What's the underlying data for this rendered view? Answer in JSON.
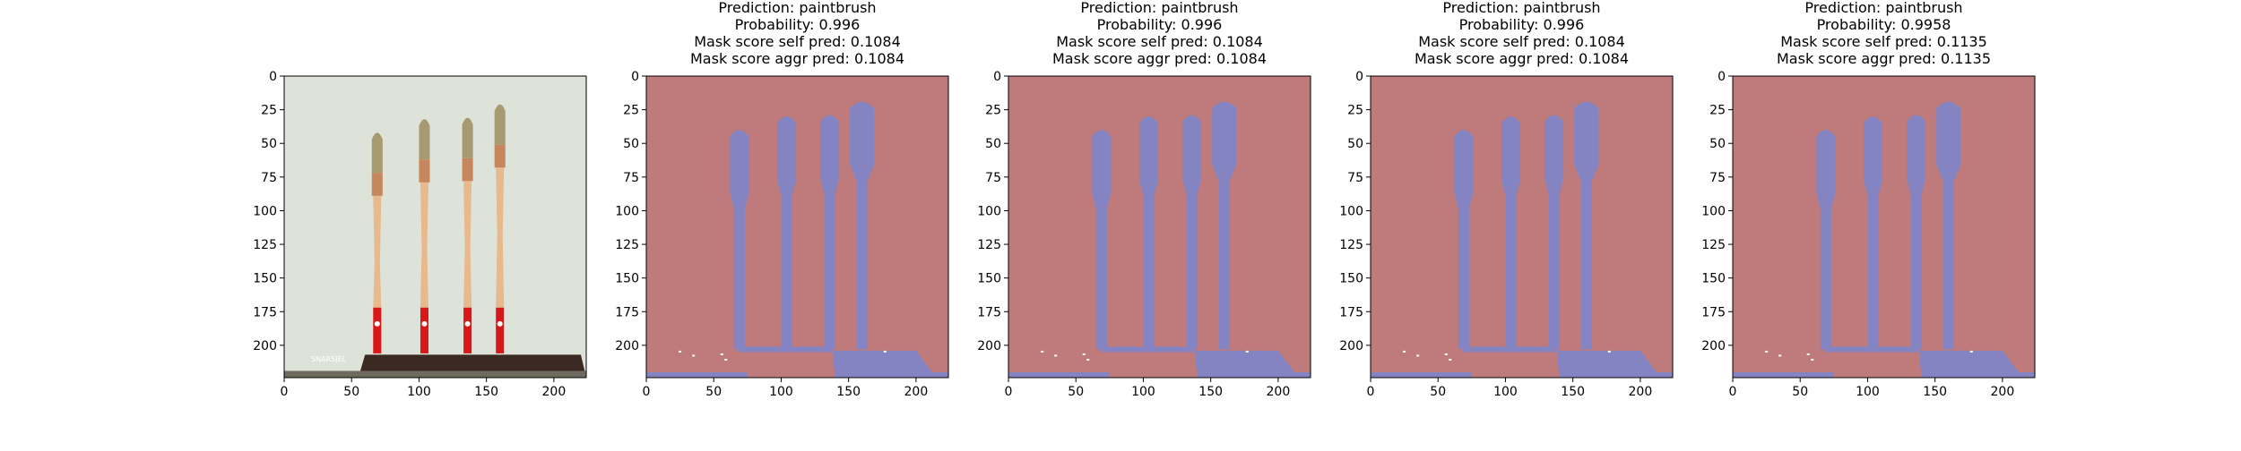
{
  "chart_data": {
    "type": "image-grid",
    "panels": [
      {
        "kind": "photo",
        "titles": [],
        "x_ticks": [
          0,
          50,
          100,
          150,
          200
        ],
        "y_ticks": [
          0,
          25,
          50,
          75,
          100,
          125,
          150,
          175,
          200
        ],
        "xlim": [
          0,
          224
        ],
        "ylim": [
          224,
          0
        ],
        "watermark": "SNARSJEL"
      },
      {
        "kind": "mask",
        "titles": [
          "Prediction: paintbrush",
          "Probability: 0.996",
          "Mask score self pred: 0.1084",
          "Mask score aggr pred: 0.1084"
        ],
        "x_ticks": [
          0,
          50,
          100,
          150,
          200
        ],
        "y_ticks": [
          0,
          25,
          50,
          75,
          100,
          125,
          150,
          175,
          200
        ],
        "xlim": [
          0,
          224
        ],
        "ylim": [
          224,
          0
        ]
      },
      {
        "kind": "mask",
        "titles": [
          "Prediction: paintbrush",
          "Probability: 0.996",
          "Mask score self pred: 0.1084",
          "Mask score aggr pred: 0.1084"
        ],
        "x_ticks": [
          0,
          50,
          100,
          150,
          200
        ],
        "y_ticks": [
          0,
          25,
          50,
          75,
          100,
          125,
          150,
          175,
          200
        ],
        "xlim": [
          0,
          224
        ],
        "ylim": [
          224,
          0
        ]
      },
      {
        "kind": "mask",
        "titles": [
          "Prediction: paintbrush",
          "Probability: 0.996",
          "Mask score self pred: 0.1084",
          "Mask score aggr pred: 0.1084"
        ],
        "x_ticks": [
          0,
          50,
          100,
          150,
          200
        ],
        "y_ticks": [
          0,
          25,
          50,
          75,
          100,
          125,
          150,
          175,
          200
        ],
        "xlim": [
          0,
          224
        ],
        "ylim": [
          224,
          0
        ]
      },
      {
        "kind": "mask",
        "titles": [
          "Prediction: paintbrush",
          "Probability: 0.9958",
          "Mask score self pred: 0.1135",
          "Mask score aggr pred: 0.1135"
        ],
        "x_ticks": [
          0,
          50,
          100,
          150,
          200
        ],
        "y_ticks": [
          0,
          25,
          50,
          75,
          100,
          125,
          150,
          175,
          200
        ],
        "xlim": [
          0,
          224
        ],
        "ylim": [
          224,
          0
        ]
      }
    ],
    "colors": {
      "mask_background": "#bf7b7b",
      "mask_foreground": "#8484c2",
      "photo_wall": "#dde3d8",
      "handle": "#e8b98c",
      "ferrule": "#c7875e",
      "bristles": "#a89a70",
      "red_tip": "#d81818",
      "base": "#3a2a22"
    }
  }
}
